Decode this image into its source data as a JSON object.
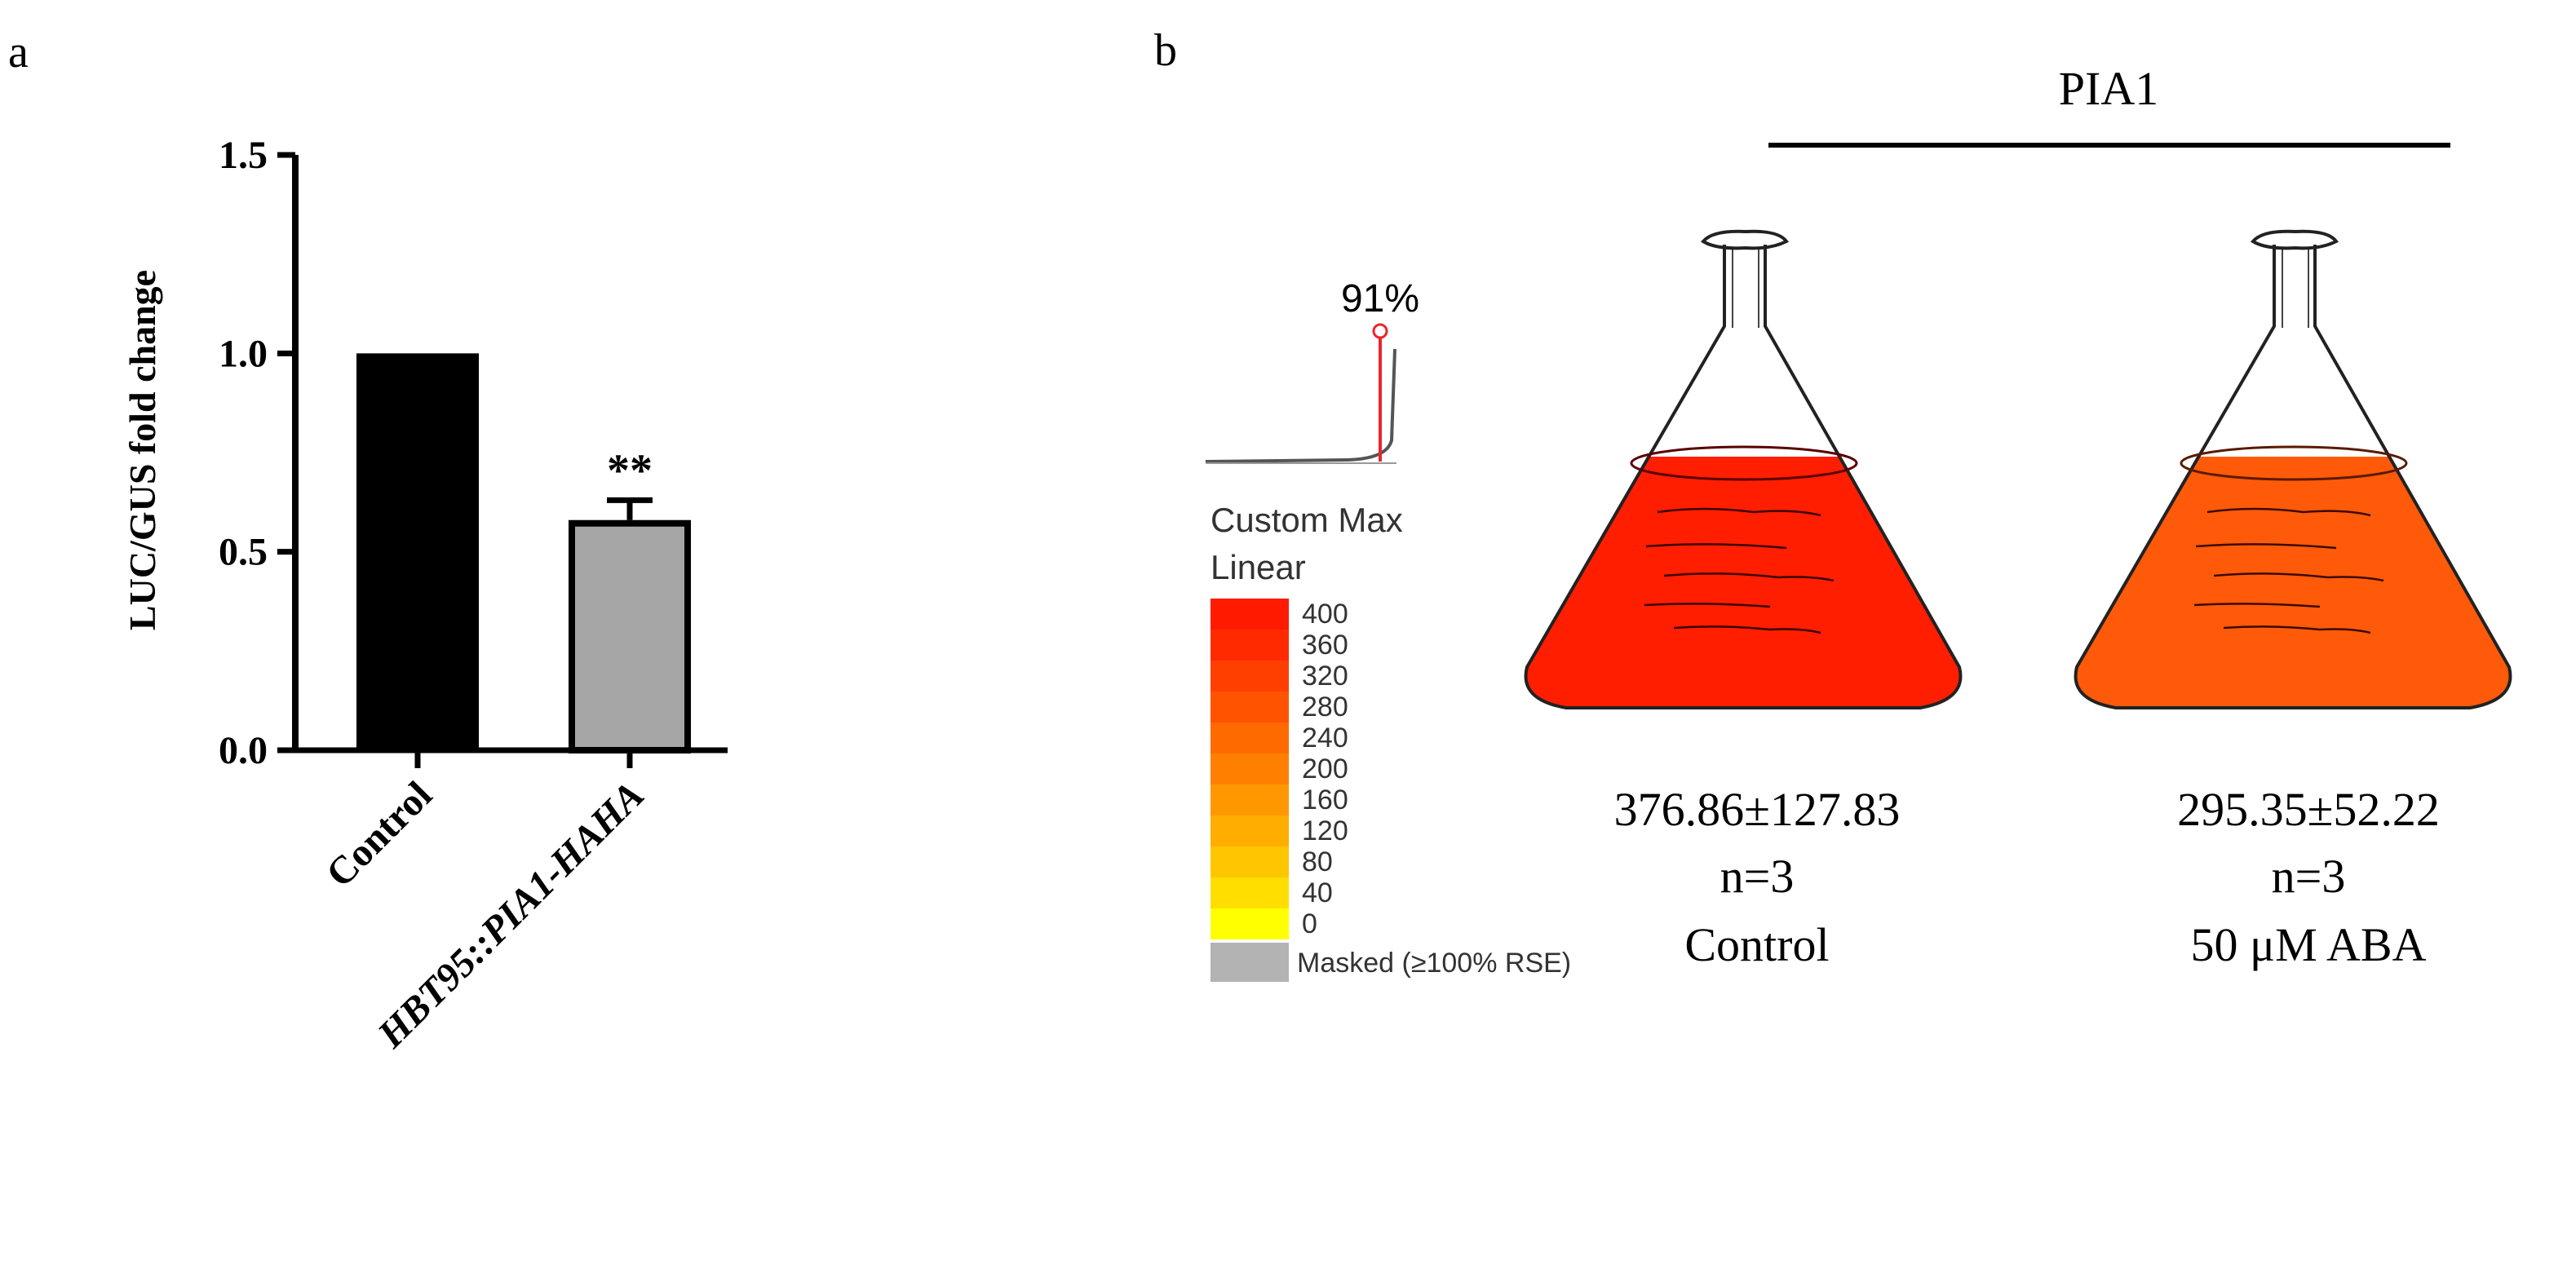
{
  "panel_a": {
    "label": "a",
    "chart_data": {
      "type": "bar",
      "categories": [
        "Control",
        "HBT95::PIA1-HAHA"
      ],
      "values": [
        1.0,
        0.58
      ],
      "errors": [
        0.0,
        0.05
      ],
      "bar_colors": [
        "#000000",
        "#a6a6a6"
      ],
      "significance": [
        "",
        "**"
      ],
      "ylabel": "LUC/GUS fold change",
      "ylim": [
        0,
        1.5
      ],
      "yticks": [
        "0.0",
        "0.5",
        "1.0",
        "1.5"
      ],
      "grid": false
    }
  },
  "panel_b": {
    "label": "b",
    "group_label": "PIA1",
    "histogram": {
      "percent_label": "91%",
      "marker_color": "#e8262d"
    },
    "legend": {
      "title_line1": "Custom Max",
      "title_line2": "Linear",
      "entries": [
        {
          "label": "400",
          "color": "#ff1a00"
        },
        {
          "label": "360",
          "color": "#ff2a00"
        },
        {
          "label": "320",
          "color": "#ff3f00"
        },
        {
          "label": "280",
          "color": "#ff5300"
        },
        {
          "label": "240",
          "color": "#ff6a00"
        },
        {
          "label": "200",
          "color": "#ff8000"
        },
        {
          "label": "160",
          "color": "#ff9800"
        },
        {
          "label": "120",
          "color": "#ffae00"
        },
        {
          "label": "80",
          "color": "#ffc600"
        },
        {
          "label": "40",
          "color": "#ffde00"
        },
        {
          "label": "0",
          "color": "#ffff00"
        }
      ],
      "masked_label": "Masked (≥100% RSE)",
      "masked_color": "#b3b3b3"
    },
    "flasks": [
      {
        "value": "376.86±127.83",
        "n": "n=3",
        "condition": "Control",
        "liquid_color": "#ff1e00"
      },
      {
        "value": "295.35±52.22",
        "n": "n=3",
        "condition": "50 μM ABA",
        "liquid_color": "#ff5a0a"
      }
    ]
  }
}
